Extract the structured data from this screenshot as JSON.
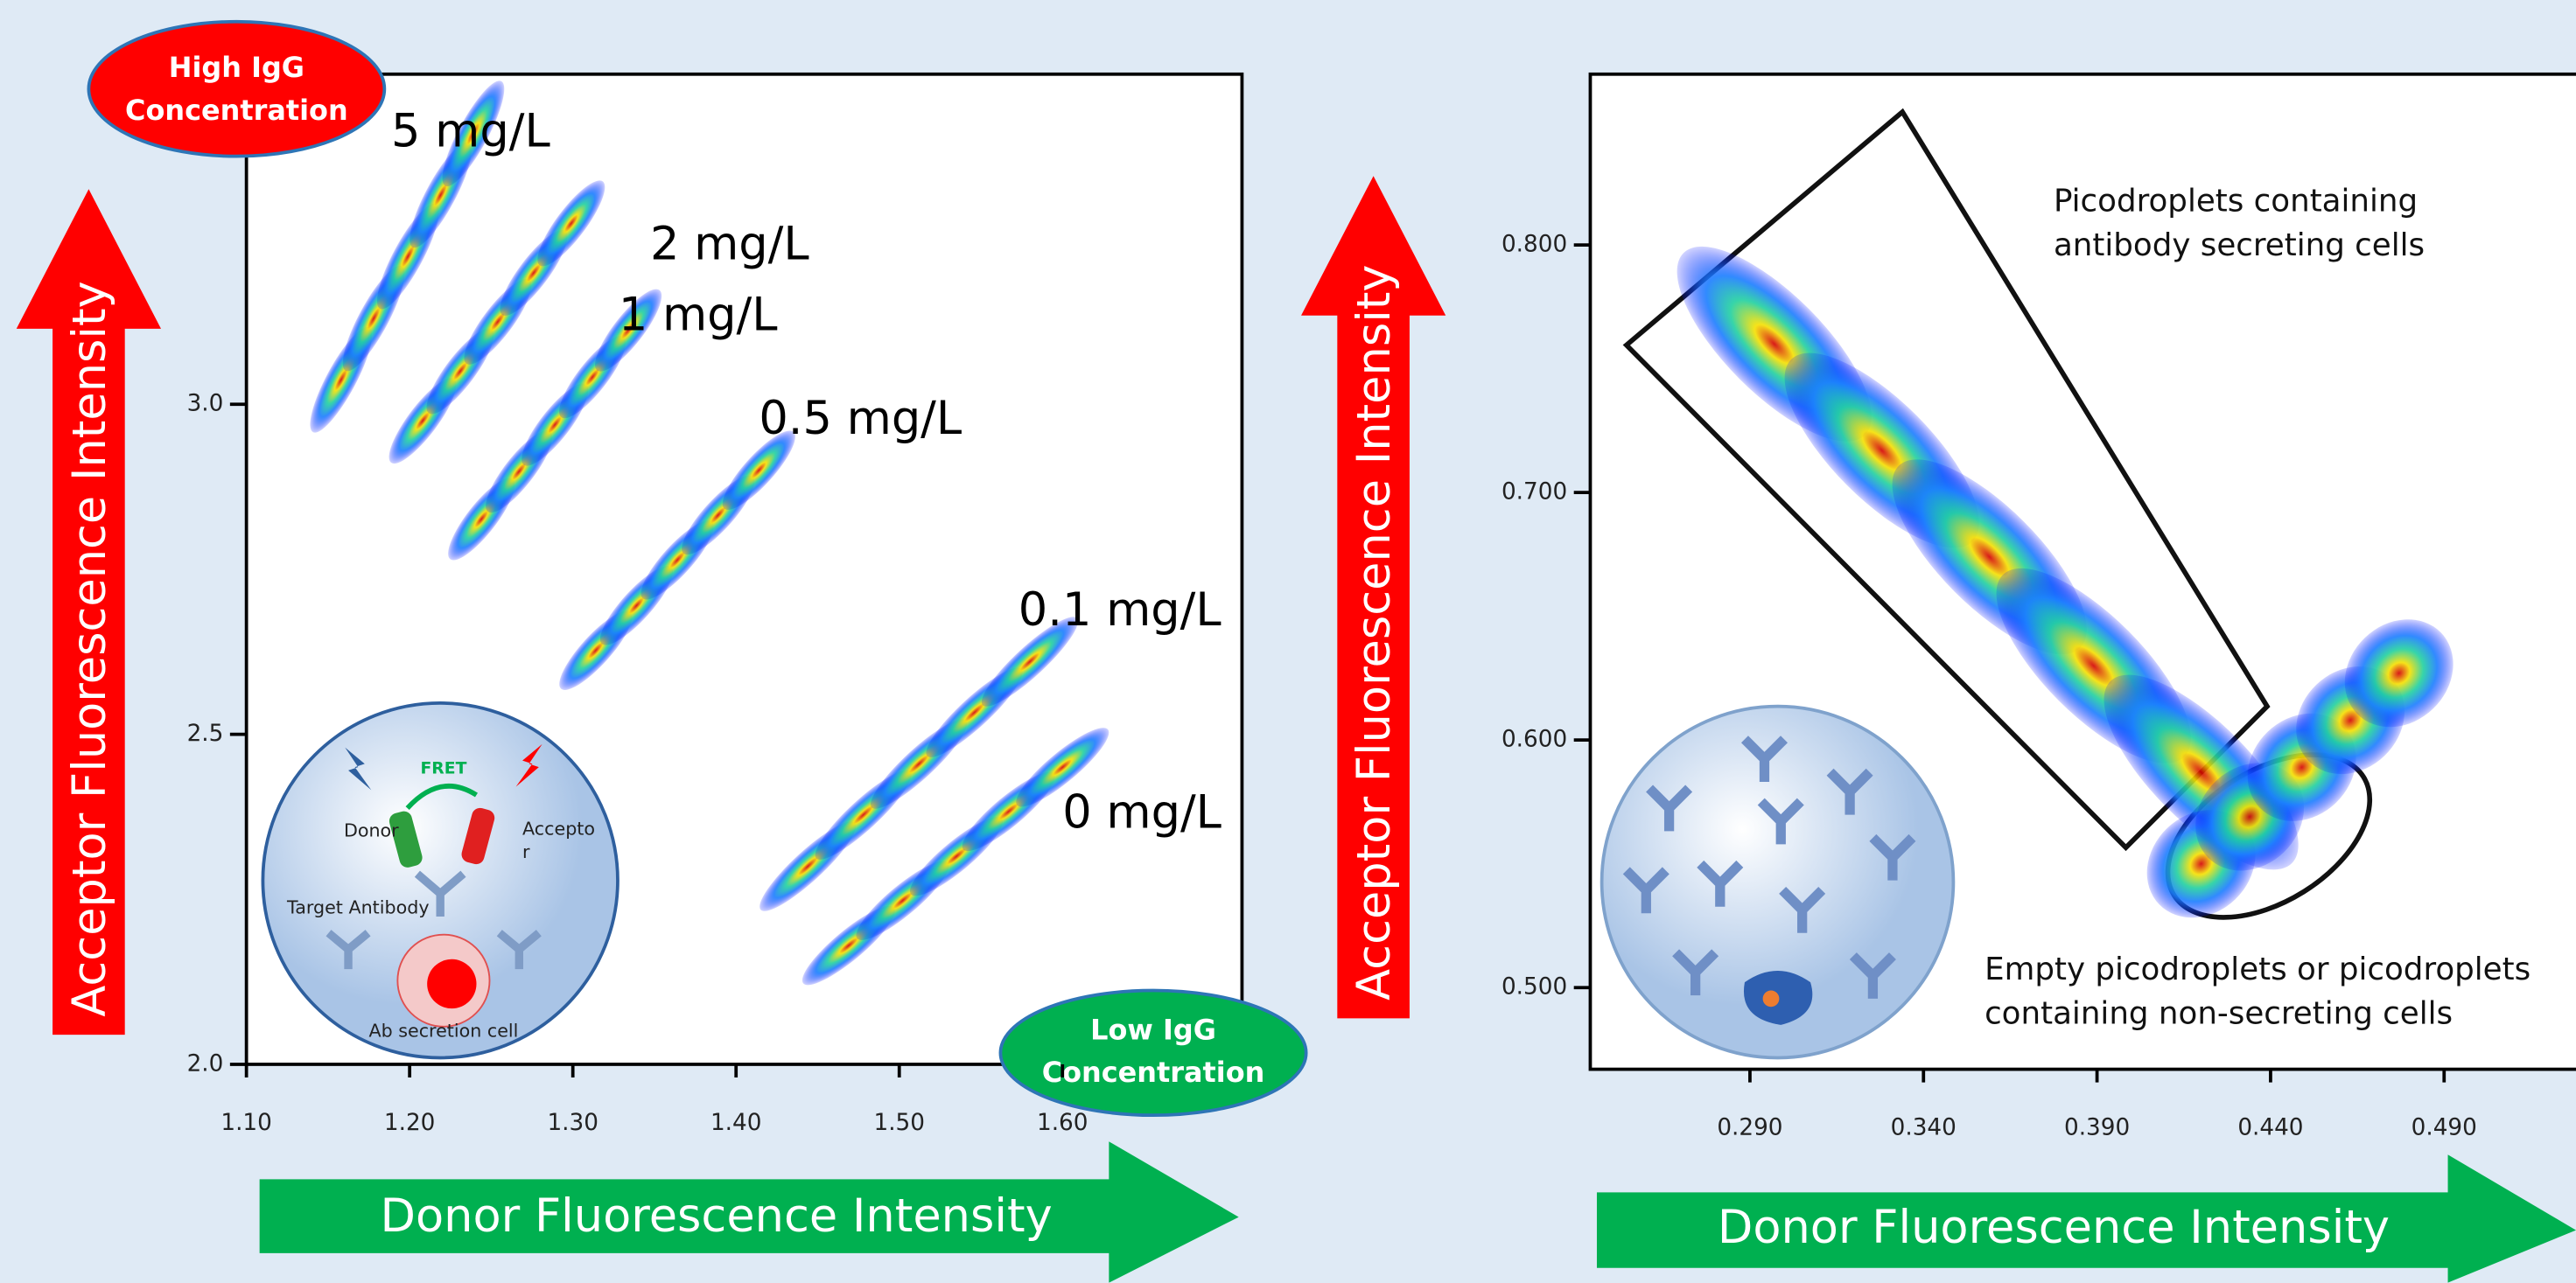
{
  "chart_data": [
    {
      "type": "scatter",
      "x_label": "Donor Fluorescence Intensity",
      "y_label": "Acceptor Fluorescence Intensity",
      "xlim": [
        1.1,
        1.71
      ],
      "ylim": [
        2.0,
        3.5
      ],
      "xticks": [
        {
          "value": 1.1,
          "label": "1.10"
        },
        {
          "value": 1.2,
          "label": "1.20"
        },
        {
          "value": 1.3,
          "label": "1.30"
        },
        {
          "value": 1.4,
          "label": "1.40"
        },
        {
          "value": 1.5,
          "label": "1.50"
        },
        {
          "value": 1.6,
          "label": "1.60"
        }
      ],
      "yticks": [
        {
          "value": 2.0,
          "label": "2.0"
        },
        {
          "value": 2.5,
          "label": "2.5"
        },
        {
          "value": 3.0,
          "label": "3.0"
        }
      ],
      "series": [
        {
          "name": "5 mg/L",
          "x": [
            1.158,
            1.178,
            1.199,
            1.219,
            1.239
          ],
          "y": [
            3.037,
            3.13,
            3.224,
            3.317,
            3.41
          ]
        },
        {
          "name": "2 mg/L",
          "x": [
            1.208,
            1.231,
            1.254,
            1.276,
            1.299
          ],
          "y": [
            2.975,
            3.05,
            3.125,
            3.199,
            3.274
          ]
        },
        {
          "name": "1 mg/L",
          "x": [
            1.244,
            1.267,
            1.289,
            1.312,
            1.334
          ],
          "y": [
            2.826,
            2.898,
            2.969,
            3.041,
            3.112
          ]
        },
        {
          "name": "0.5 mg/L",
          "x": [
            1.314,
            1.339,
            1.364,
            1.389,
            1.414
          ],
          "y": [
            2.627,
            2.695,
            2.764,
            2.832,
            2.9
          ]
        },
        {
          "name": "0.1 mg/L",
          "x": [
            1.444,
            1.478,
            1.512,
            1.546,
            1.58
          ],
          "y": [
            2.3,
            2.378,
            2.455,
            2.533,
            2.61
          ]
        },
        {
          "name": "0 mg/L",
          "x": [
            1.469,
            1.502,
            1.535,
            1.567,
            1.6
          ],
          "y": [
            2.18,
            2.248,
            2.315,
            2.383,
            2.45
          ]
        }
      ],
      "badges": [
        {
          "lines": [
            "High IgG",
            "Concentration"
          ]
        },
        {
          "lines": [
            "Low IgG",
            "Concentration"
          ]
        }
      ],
      "inset": {
        "fret": "FRET",
        "donor": "Donor",
        "acceptor": [
          "Accepto",
          "r"
        ],
        "target": "Target Antibody",
        "cell": "Ab secretion cell"
      }
    },
    {
      "type": "scatter",
      "x_label": "Donor Fluorescence Intensity",
      "y_label": "Acceptor Fluorescence Intensity",
      "xlim": [
        0.244,
        0.528
      ],
      "ylim": [
        0.467,
        0.869
      ],
      "xticks": [
        {
          "value": 0.29,
          "label": "0.290"
        },
        {
          "value": 0.34,
          "label": "0.340"
        },
        {
          "value": 0.39,
          "label": "0.390"
        },
        {
          "value": 0.44,
          "label": "0.440"
        },
        {
          "value": 0.49,
          "label": "0.490"
        }
      ],
      "yticks": [
        {
          "value": 0.5,
          "label": "0.500"
        },
        {
          "value": 0.6,
          "label": "0.600"
        },
        {
          "value": 0.7,
          "label": "0.700"
        },
        {
          "value": 0.8,
          "label": "0.800"
        }
      ],
      "series": [
        {
          "x": [
            0.297,
            0.328,
            0.359,
            0.389,
            0.42
          ],
          "y": [
            0.76,
            0.717,
            0.674,
            0.63,
            0.587
          ]
        },
        {
          "x": [
            0.42,
            0.434,
            0.449,
            0.463,
            0.477
          ],
          "y": [
            0.55,
            0.569,
            0.589,
            0.608,
            0.627
          ]
        }
      ],
      "annotations": [
        {
          "lines": [
            "Picodroplets containing",
            "antibody secreting cells"
          ]
        },
        {
          "lines": [
            "Empty picodroplets or picodroplets",
            "containing non-secreting cells"
          ]
        }
      ]
    }
  ]
}
